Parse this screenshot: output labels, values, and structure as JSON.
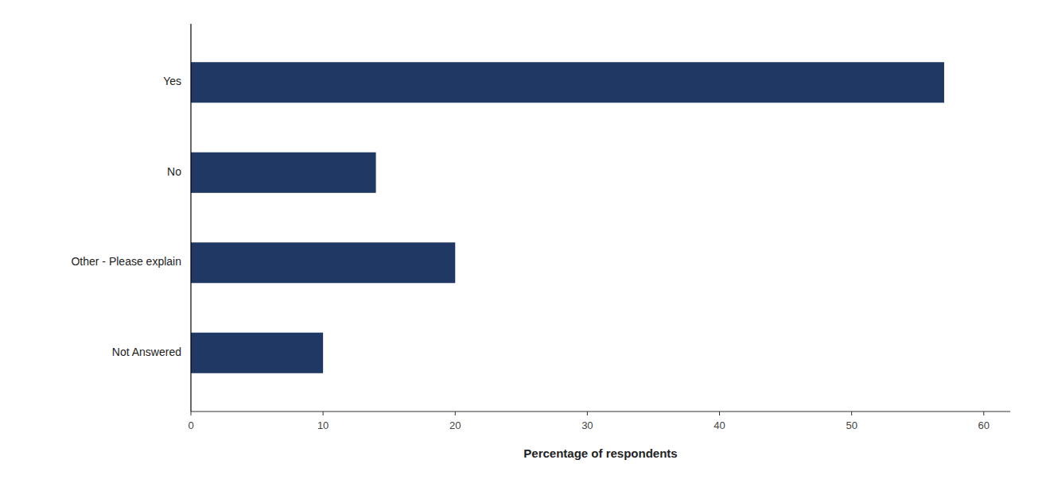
{
  "chart_data": {
    "type": "bar",
    "orientation": "horizontal",
    "categories": [
      "Yes",
      "No",
      "Other - Please explain",
      "Not Answered"
    ],
    "values": [
      57,
      14,
      20,
      10
    ],
    "color": "#1F3864",
    "xlabel": "Percentage of respondents",
    "xlim": [
      0,
      62
    ],
    "xticks": [
      0,
      10,
      20,
      30,
      40,
      50,
      60
    ],
    "grid": false
  }
}
